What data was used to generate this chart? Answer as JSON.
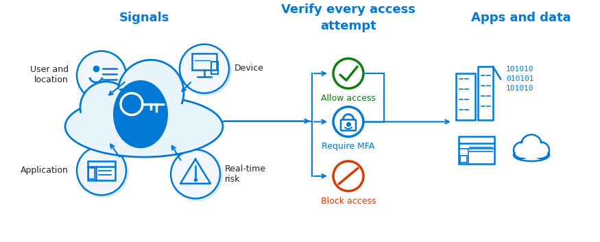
{
  "bg_color": "#ffffff",
  "blue": "#0078d4",
  "green": "#107c10",
  "orange_red": "#d83b01",
  "circle_face": "#f0f6fc",
  "circle_edge": "#0078d4",
  "title_signals": "Signals",
  "title_verify": "Verify every access\nattempt",
  "title_apps": "Apps and data",
  "label_user": "User and\nlocation",
  "label_device": "Device",
  "label_application": "Application",
  "label_risk": "Real-time\nrisk",
  "label_allow": "Allow access",
  "label_mfa": "Require MFA",
  "label_block": "Block access",
  "binary1": "101010",
  "binary2": "010101",
  "binary3": "101010"
}
